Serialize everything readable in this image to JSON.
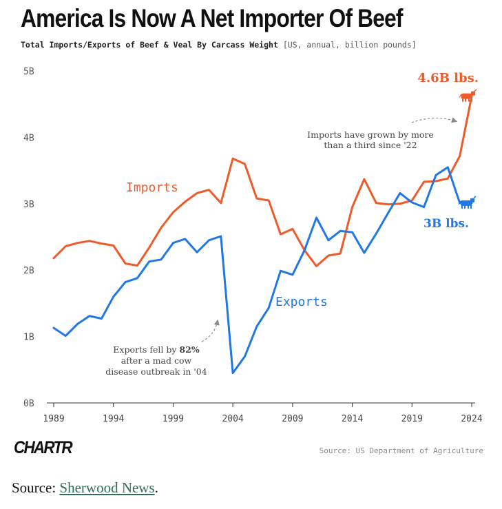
{
  "header": {
    "title": "America Is Now A Net Importer Of Beef",
    "subtitle": "Total Imports/Exports of Beef & Veal By Carcass Weight",
    "units": "[US, annual, billion pounds]"
  },
  "chart_data": {
    "type": "line",
    "title": "America Is Now A Net Importer Of Beef",
    "subtitle": "Total Imports/Exports of Beef & Veal By Carcass Weight [US, annual, billion pounds]",
    "xlabel": "",
    "ylabel": "",
    "x": [
      1989,
      1990,
      1991,
      1992,
      1993,
      1994,
      1995,
      1996,
      1997,
      1998,
      1999,
      2000,
      2001,
      2002,
      2003,
      2004,
      2005,
      2006,
      2007,
      2008,
      2009,
      2010,
      2011,
      2012,
      2013,
      2014,
      2015,
      2016,
      2017,
      2018,
      2019,
      2020,
      2021,
      2022,
      2023,
      2024
    ],
    "xlim": [
      1989,
      2024
    ],
    "ylim": [
      0,
      5
    ],
    "x_ticks": [
      "1989",
      "1994",
      "1999",
      "2004",
      "2009",
      "2014",
      "2019",
      "2024"
    ],
    "y_ticks": [
      "0B",
      "1B",
      "2B",
      "3B",
      "4B",
      "5B"
    ],
    "grid": false,
    "series": [
      {
        "name": "Imports",
        "color": "#f05a28",
        "values": [
          2.18,
          2.36,
          2.41,
          2.44,
          2.4,
          2.37,
          2.1,
          2.07,
          2.34,
          2.64,
          2.87,
          3.03,
          3.16,
          3.21,
          3.01,
          3.68,
          3.6,
          3.08,
          3.05,
          2.54,
          2.62,
          2.3,
          2.06,
          2.22,
          2.25,
          2.95,
          3.37,
          3.01,
          2.99,
          3.0,
          3.05,
          3.33,
          3.34,
          3.38,
          3.72,
          4.62
        ]
      },
      {
        "name": "Exports",
        "color": "#1f77e8",
        "values": [
          1.13,
          1.01,
          1.19,
          1.31,
          1.27,
          1.6,
          1.82,
          1.88,
          2.13,
          2.16,
          2.41,
          2.47,
          2.27,
          2.45,
          2.51,
          0.45,
          0.7,
          1.15,
          1.43,
          1.99,
          1.93,
          2.3,
          2.79,
          2.45,
          2.59,
          2.57,
          2.26,
          2.55,
          2.86,
          3.16,
          3.02,
          2.95,
          3.43,
          3.55,
          3.01,
          3.01
        ]
      }
    ],
    "end_labels": {
      "imports": "4.6B lbs.",
      "exports": "3B lbs."
    },
    "annotations": {
      "imports_note": [
        "Imports have grown by more",
        "than a third since '22"
      ],
      "exports_note": [
        [
          {
            "t": "Exports fell by ",
            "b": false
          },
          {
            "t": "82%",
            "b": true
          }
        ],
        [
          {
            "t": "after a mad cow",
            "b": false
          }
        ],
        [
          {
            "t": "disease outbreak in '04",
            "b": false
          }
        ]
      ]
    },
    "end_icon": "cow-icon"
  },
  "footer": {
    "logo": "CHARTR",
    "source": "Source: US Department of Agriculture"
  },
  "caption": {
    "prefix": "Source: ",
    "link_text": "Sherwood News",
    "suffix": "."
  }
}
